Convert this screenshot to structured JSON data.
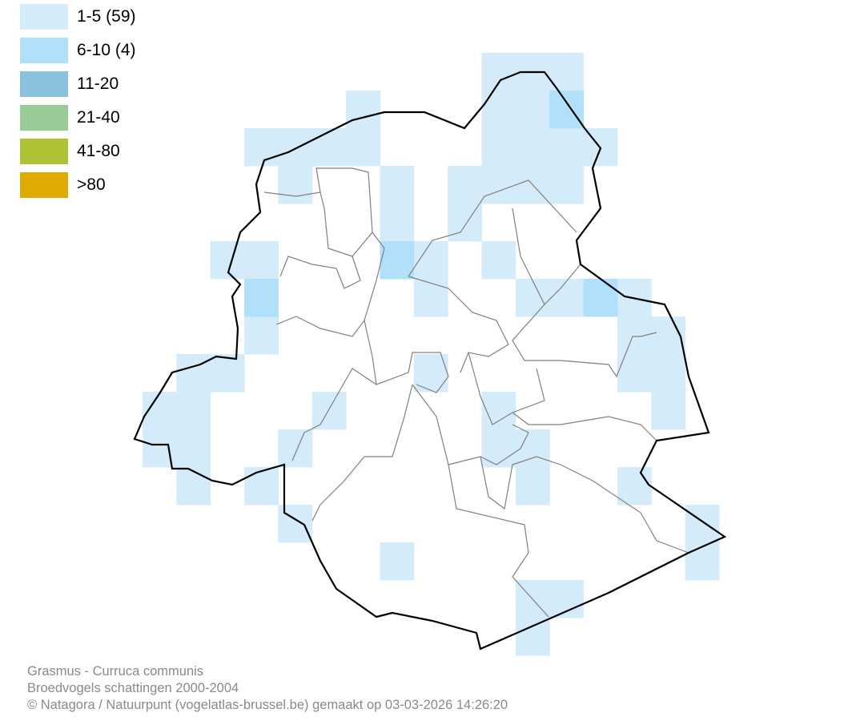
{
  "legend": [
    {
      "label": "1-5 (59)",
      "color": "#d4ebfa"
    },
    {
      "label": "6-10 (4)",
      "color": "#b1e1fa"
    },
    {
      "label": "11-20",
      "color": "#89c1df"
    },
    {
      "label": "21-40",
      "color": "#99cb96"
    },
    {
      "label": "41-80",
      "color": "#afc236"
    },
    {
      "label": ">80",
      "color": "#e0ab00"
    }
  ],
  "grid_cells": {
    "1-5": [
      [
        0,
        10
      ],
      [
        0,
        11
      ],
      [
        0,
        12
      ],
      [
        1,
        6
      ],
      [
        1,
        10
      ],
      [
        1,
        11
      ],
      [
        2,
        3
      ],
      [
        2,
        4
      ],
      [
        2,
        5
      ],
      [
        2,
        6
      ],
      [
        2,
        10
      ],
      [
        2,
        11
      ],
      [
        2,
        12
      ],
      [
        2,
        13
      ],
      [
        3,
        4
      ],
      [
        3,
        7
      ],
      [
        3,
        9
      ],
      [
        3,
        10
      ],
      [
        3,
        11
      ],
      [
        3,
        12
      ],
      [
        4,
        7
      ],
      [
        4,
        9
      ],
      [
        5,
        2
      ],
      [
        5,
        3
      ],
      [
        5,
        8
      ],
      [
        5,
        10
      ],
      [
        6,
        8
      ],
      [
        6,
        11
      ],
      [
        6,
        12
      ],
      [
        6,
        14
      ],
      [
        7,
        3
      ],
      [
        7,
        14
      ],
      [
        7,
        15
      ],
      [
        8,
        1
      ],
      [
        8,
        2
      ],
      [
        8,
        8
      ],
      [
        8,
        14
      ],
      [
        8,
        15
      ],
      [
        9,
        0
      ],
      [
        9,
        1
      ],
      [
        9,
        5
      ],
      [
        9,
        10
      ],
      [
        9,
        15
      ],
      [
        10,
        0
      ],
      [
        10,
        1
      ],
      [
        10,
        4
      ],
      [
        10,
        10
      ],
      [
        10,
        11
      ],
      [
        11,
        1
      ],
      [
        11,
        3
      ],
      [
        11,
        11
      ],
      [
        11,
        14
      ],
      [
        12,
        4
      ],
      [
        12,
        16
      ],
      [
        13,
        7
      ],
      [
        13,
        16
      ],
      [
        14,
        11
      ],
      [
        14,
        12
      ],
      [
        15,
        11
      ]
    ],
    "6-10": [
      [
        1,
        12
      ],
      [
        5,
        7
      ],
      [
        6,
        3
      ],
      [
        6,
        13
      ]
    ]
  },
  "caption": {
    "species": "Grasmus - Curruca communis",
    "subtitle": "Broedvogels schattingen 2000-2004",
    "credit": "© Natagora / Natuurpunt (vogelatlas-brussel.be) gemaakt op 03-03-2026 14:26:20"
  }
}
